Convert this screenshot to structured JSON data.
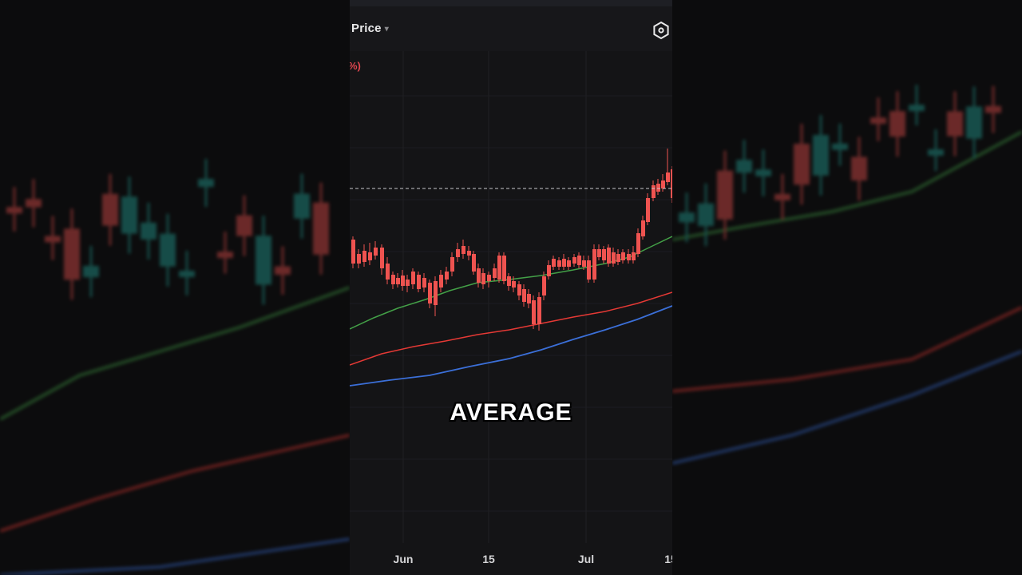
{
  "header": {
    "price_label": "Price",
    "price_caret": "▾",
    "settings_icon": "settings-icon"
  },
  "legend": {
    "percent_fragment": "%)"
  },
  "caption": {
    "text": "AVERAGE"
  },
  "colors": {
    "up": "#26a69a",
    "down": "#ef5350",
    "ma_short": "#43a047",
    "ma_mid": "#e53935",
    "ma_long": "#3b6fd8",
    "background": "#141416"
  },
  "chart_data": {
    "type": "candlestick",
    "x_ticks": [
      "Jun",
      "15",
      "Jul",
      "15"
    ],
    "series": [
      {
        "name": "",
        "style": "candles"
      },
      {
        "name": "",
        "style": "line",
        "color": "green"
      },
      {
        "name": "",
        "style": "line",
        "color": "red"
      },
      {
        "name": "",
        "style": "line",
        "color": "blue"
      }
    ],
    "price_line": "dashed horizontal line at latest price"
  }
}
